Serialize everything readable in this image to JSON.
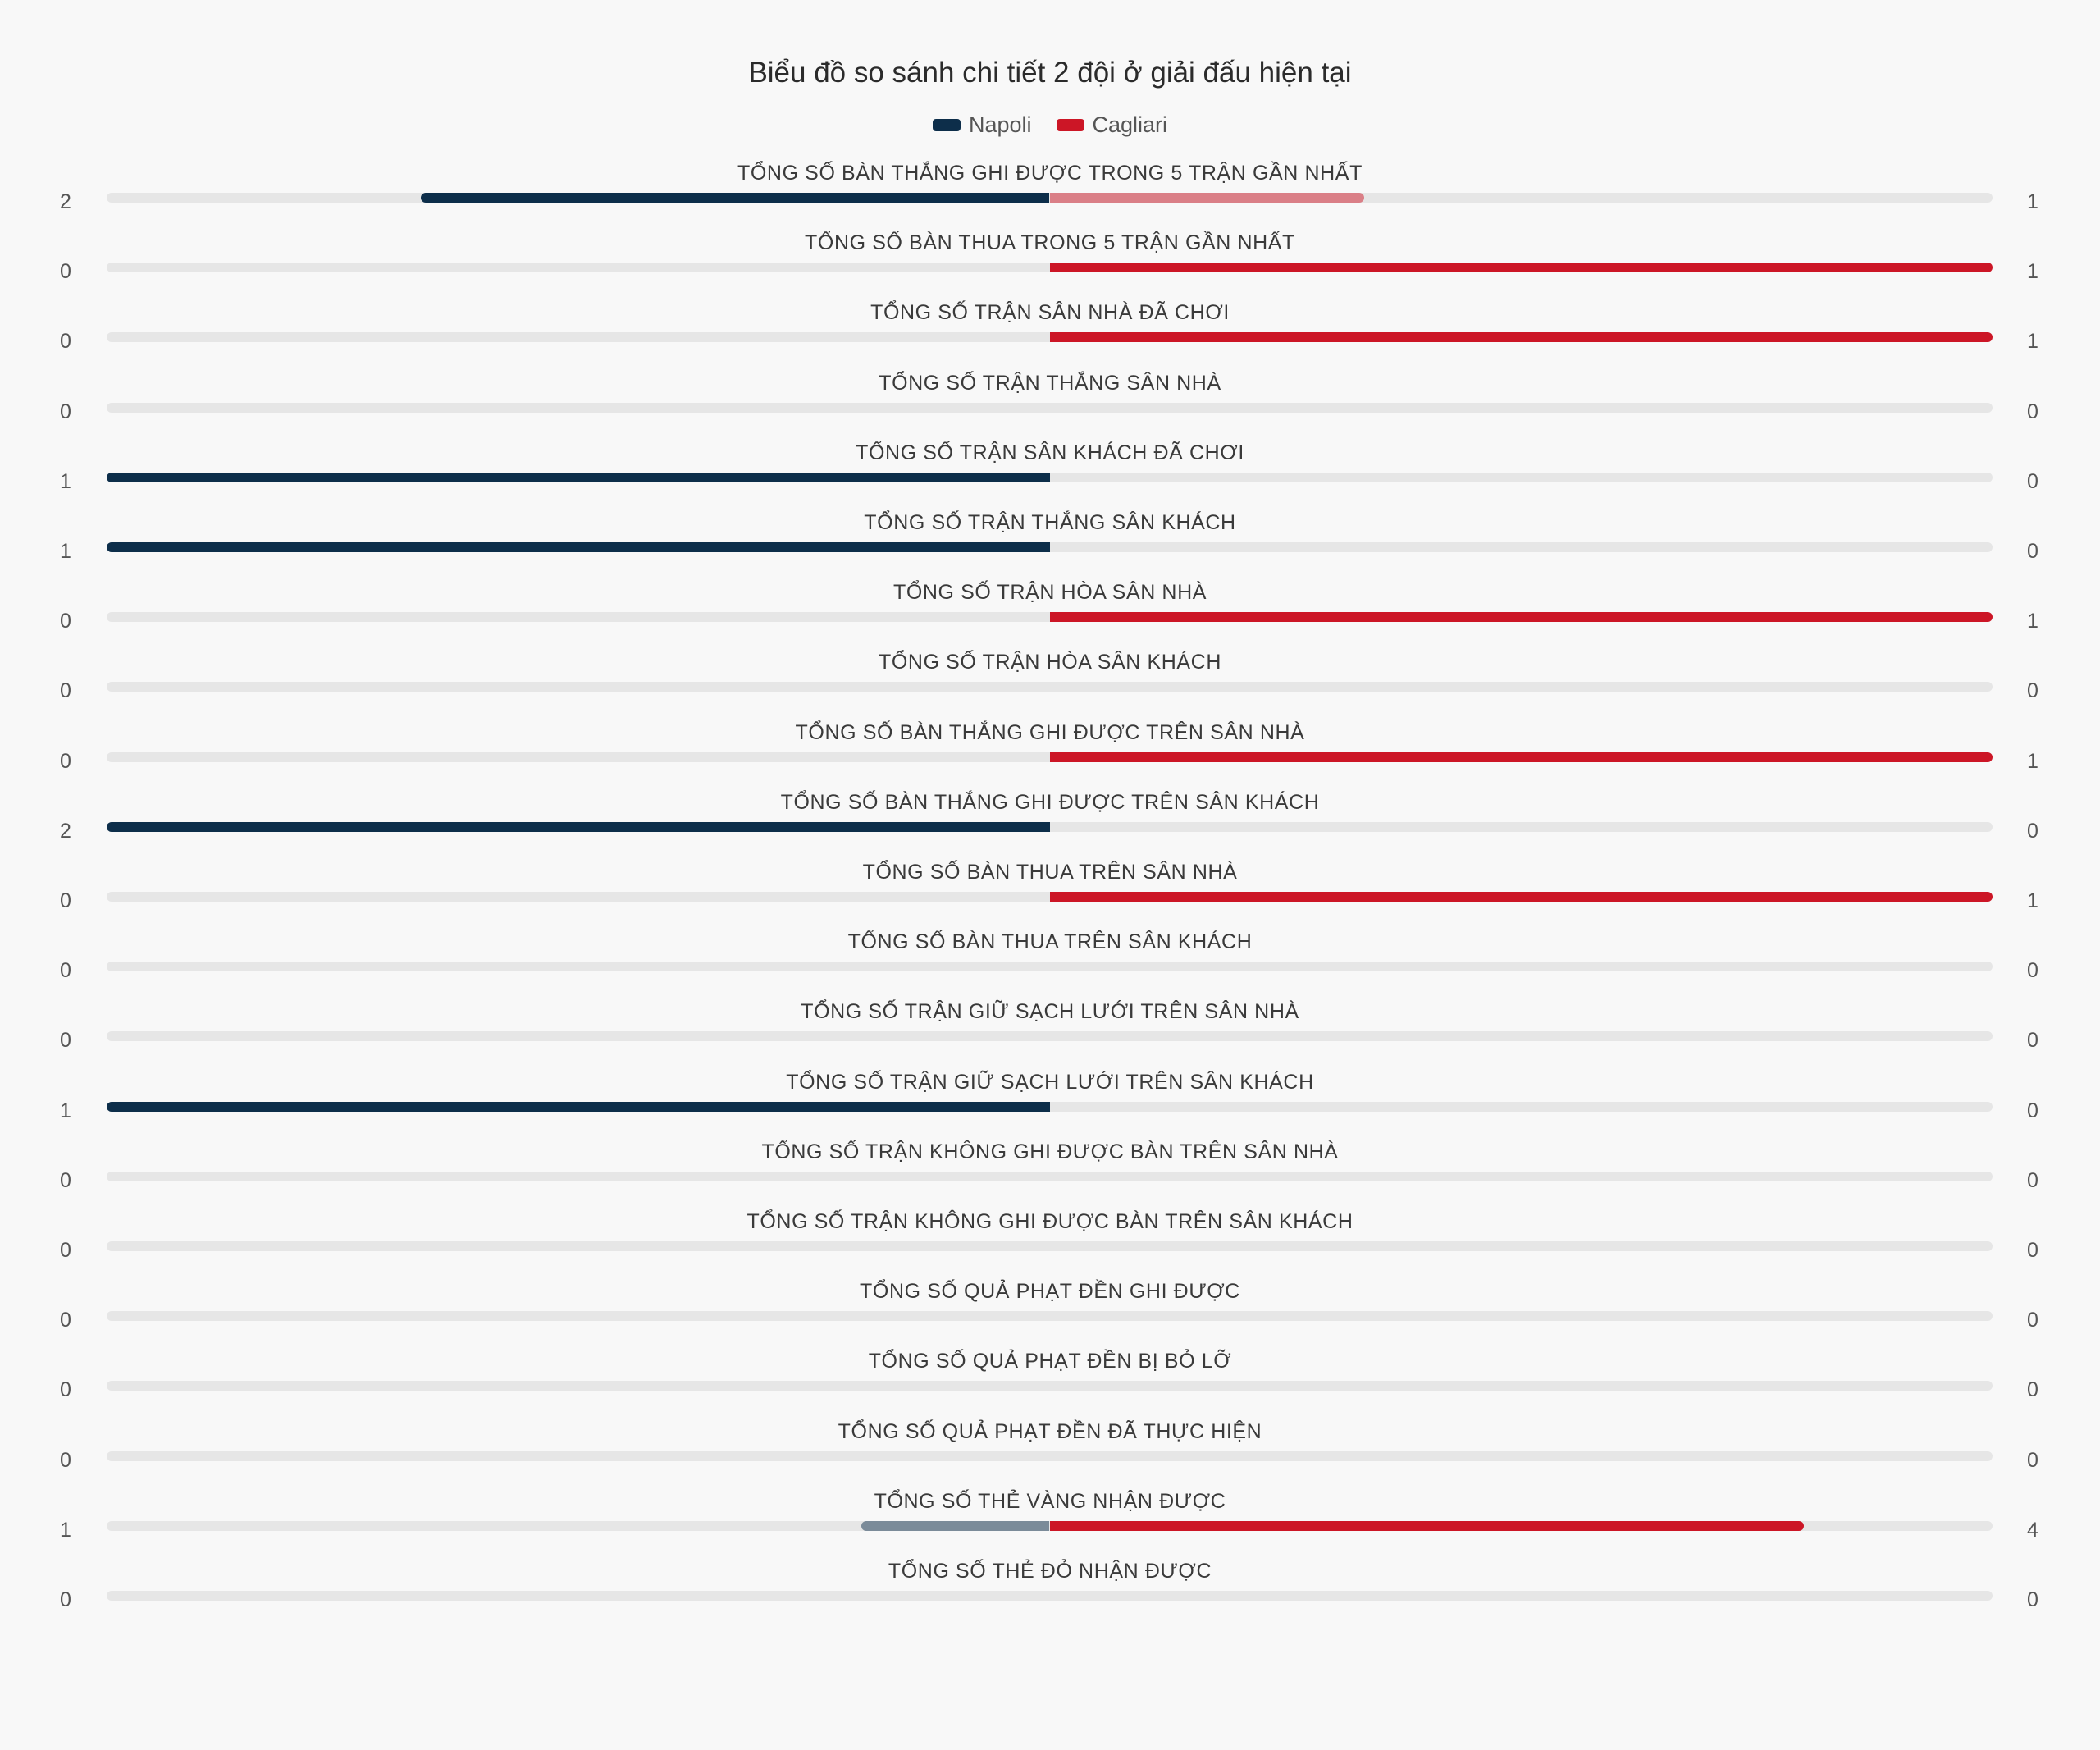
{
  "chart_data": {
    "type": "bar",
    "title": "Biểu đồ so sánh chi tiết 2 đội ở giải đấu hiện tại",
    "legend": {
      "position": "top-center"
    },
    "series": [
      {
        "name": "Napoli",
        "color": "#0d2e4a"
      },
      {
        "name": "Cagliari",
        "color": "#cc1626"
      }
    ],
    "rows": [
      {
        "label": "TỔNG SỐ BÀN THẮNG GHI ĐƯỢC TRONG 5 TRẬN GẦN NHẤT",
        "left": 2,
        "right": 1
      },
      {
        "label": "TỔNG SỐ BÀN THUA TRONG 5 TRẬN GẦN NHẤT",
        "left": 0,
        "right": 1
      },
      {
        "label": "TỔNG SỐ TRẬN SÂN NHÀ ĐÃ CHƠI",
        "left": 0,
        "right": 1
      },
      {
        "label": "TỔNG SỐ TRẬN THẮNG SÂN NHÀ",
        "left": 0,
        "right": 0
      },
      {
        "label": "TỔNG SỐ TRẬN SÂN KHÁCH ĐÃ CHƠI",
        "left": 1,
        "right": 0
      },
      {
        "label": "TỔNG SỐ TRẬN THẮNG SÂN KHÁCH",
        "left": 1,
        "right": 0
      },
      {
        "label": "TỔNG SỐ TRẬN HÒA SÂN NHÀ",
        "left": 0,
        "right": 1
      },
      {
        "label": "TỔNG SỐ TRẬN HÒA SÂN KHÁCH",
        "left": 0,
        "right": 0
      },
      {
        "label": "TỔNG SỐ BÀN THẮNG GHI ĐƯỢC TRÊN SÂN NHÀ",
        "left": 0,
        "right": 1
      },
      {
        "label": "TỔNG SỐ BÀN THẮNG GHI ĐƯỢC TRÊN SÂN KHÁCH",
        "left": 2,
        "right": 0
      },
      {
        "label": "TỔNG SỐ BÀN THUA TRÊN SÂN NHÀ",
        "left": 0,
        "right": 1
      },
      {
        "label": "TỔNG SỐ BÀN THUA TRÊN SÂN KHÁCH",
        "left": 0,
        "right": 0
      },
      {
        "label": "TỔNG SỐ TRẬN GIỮ SẠCH LƯỚI TRÊN SÂN NHÀ",
        "left": 0,
        "right": 0
      },
      {
        "label": "TỔNG SỐ TRẬN GIỮ SẠCH LƯỚI TRÊN SÂN KHÁCH",
        "left": 1,
        "right": 0
      },
      {
        "label": "TỔNG SỐ TRẬN KHÔNG GHI ĐƯỢC BÀN TRÊN SÂN NHÀ",
        "left": 0,
        "right": 0
      },
      {
        "label": "TỔNG SỐ TRẬN KHÔNG GHI ĐƯỢC BÀN TRÊN SÂN KHÁCH",
        "left": 0,
        "right": 0
      },
      {
        "label": "TỔNG SỐ QUẢ PHẠT ĐỀN GHI ĐƯỢC",
        "left": 0,
        "right": 0
      },
      {
        "label": "TỔNG SỐ QUẢ PHẠT ĐỀN BỊ BỎ LỠ",
        "left": 0,
        "right": 0
      },
      {
        "label": "TỔNG SỐ QUẢ PHẠT ĐỀN ĐÃ THỰC HIỆN",
        "left": 0,
        "right": 0
      },
      {
        "label": "TỔNG SỐ THẺ VÀNG NHẬN ĐƯỢC",
        "left": 1,
        "right": 4
      },
      {
        "label": "TỔNG SỐ THẺ ĐỎ NHẬN ĐƯỢC",
        "left": 0,
        "right": 0
      }
    ]
  }
}
